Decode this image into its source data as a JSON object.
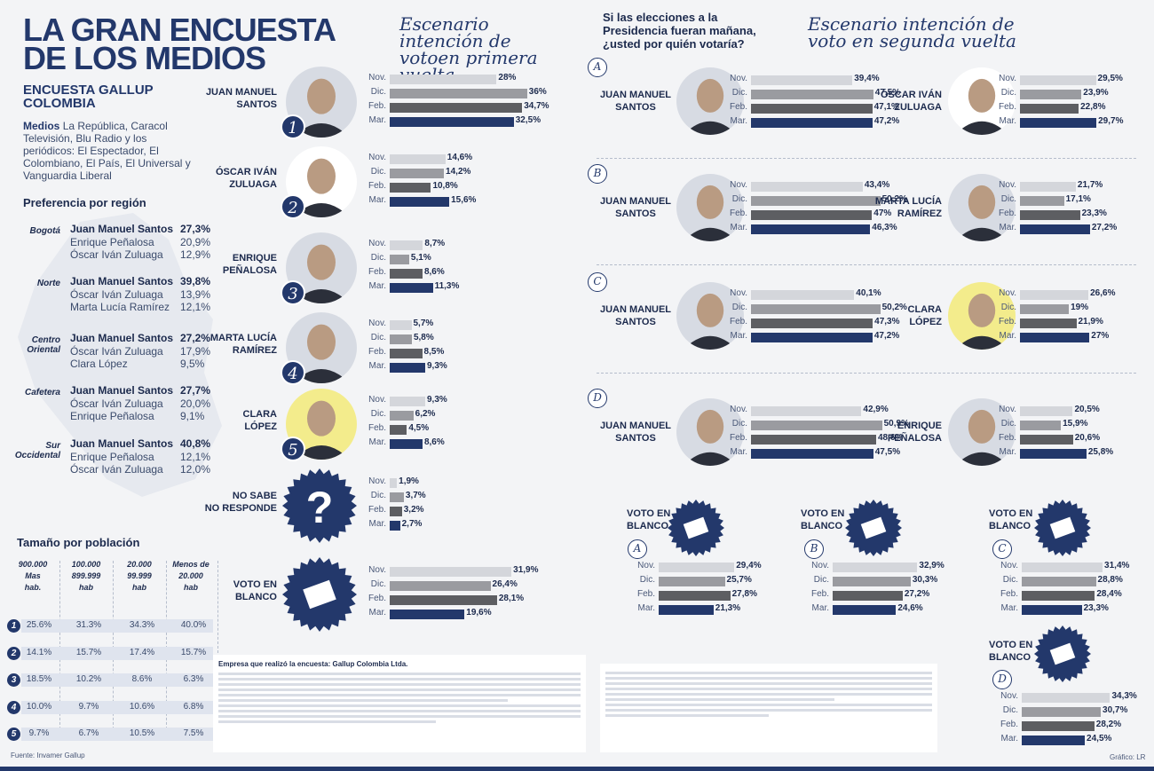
{
  "header": {
    "title_line1": "LA GRAN ENCUESTA",
    "title_line2": "DE LOS MEDIOS",
    "subtitle_line1": "ENCUESTA GALLUP",
    "subtitle_line2": "COLOMBIA",
    "medios_label": "Medios",
    "medios_text": "La República, Caracol Televisión, Blu Radio y los periódicos: El Espectador, El Colombiano, El País, El Universal y Vanguardia Liberal"
  },
  "region": {
    "title": "Preferencia por región",
    "groups": [
      {
        "label": "Bogotá",
        "rows": [
          [
            "Juan Manuel Santos",
            "27,3%"
          ],
          [
            "Enrique Peñalosa",
            "20,9%"
          ],
          [
            "Óscar Iván Zuluaga",
            "12,9%"
          ]
        ]
      },
      {
        "label": "Norte",
        "rows": [
          [
            "Juan Manuel Santos",
            "39,8%"
          ],
          [
            "Óscar Iván Zuluaga",
            "13,9%"
          ],
          [
            "Marta Lucía Ramírez",
            "12,1%"
          ]
        ]
      },
      {
        "label": "Centro Oriental",
        "rows": [
          [
            "Juan Manuel Santos",
            "27,2%"
          ],
          [
            "Óscar Iván Zuluaga",
            "17,9%"
          ],
          [
            "Clara López",
            "9,5%"
          ]
        ]
      },
      {
        "label": "Cafetera",
        "rows": [
          [
            "Juan Manuel Santos",
            "27,7%"
          ],
          [
            "Óscar Iván Zuluaga",
            "20,0%"
          ],
          [
            "Enrique Peñalosa",
            "9,1%"
          ]
        ]
      },
      {
        "label": "Sur Occidental",
        "rows": [
          [
            "Juan Manuel Santos",
            "40,8%"
          ],
          [
            "Enrique Peñalosa",
            "12,1%"
          ],
          [
            "Óscar Iván Zuluaga",
            "12,0%"
          ]
        ]
      }
    ]
  },
  "population": {
    "title": "Tamaño por población",
    "headers": [
      [
        "900.000",
        "Mas",
        "hab."
      ],
      [
        "100.000",
        "899.999",
        "hab"
      ],
      [
        "20.000",
        "99.999",
        "hab"
      ],
      [
        "Menos de",
        "20.000",
        "hab"
      ]
    ],
    "rows": [
      {
        "n": "1",
        "vals": [
          "25.6%",
          "31.3%",
          "34.3%",
          "40.0%"
        ]
      },
      {
        "n": "2",
        "vals": [
          "14.1%",
          "15.7%",
          "17.4%",
          "15.7%"
        ]
      },
      {
        "n": "3",
        "vals": [
          "18.5%",
          "10.2%",
          "8.6%",
          "6.3%"
        ]
      },
      {
        "n": "4",
        "vals": [
          "10.0%",
          "9.7%",
          "10.6%",
          "6.8%"
        ]
      },
      {
        "n": "5",
        "vals": [
          "9.7%",
          "6.7%",
          "10.5%",
          "7.5%"
        ]
      }
    ],
    "source": "Fuente: Invamer Gallup"
  },
  "first_round": {
    "title": "Escenario intención de votoen primera vuelta",
    "candidates": [
      {
        "name": "JUAN MANUEL\nSANTOS",
        "num": "1"
      },
      {
        "name": "ÓSCAR IVÁN\nZULUAGA",
        "num": "2"
      },
      {
        "name": "ENRIQUE\nPEÑALOSA",
        "num": "3"
      },
      {
        "name": "MARTA LUCÍA\nRAMÍREZ",
        "num": "4"
      },
      {
        "name": "CLARA\nLÓPEZ",
        "num": "5"
      },
      {
        "name": "NO SABE\nNO RESPONDE",
        "num": ""
      },
      {
        "name": "VOTO EN\nBLANCO",
        "num": ""
      }
    ]
  },
  "second_round": {
    "question": "Si las elecciones a la Presidencia fueran mañana, ¿usted por quién votaría?",
    "title": "Escenario intención de voto en segunda vuelta",
    "scenarios": [
      {
        "letter": "A",
        "left": "JUAN MANUEL\nSANTOS",
        "right": "ÓSCAR IVÁN\nZULUAGA"
      },
      {
        "letter": "B",
        "left": "JUAN MANUEL\nSANTOS",
        "right": "MARTA LUCÍA\nRAMÍREZ"
      },
      {
        "letter": "C",
        "left": "JUAN MANUEL\nSANTOS",
        "right": "CLARA\nLÓPEZ"
      },
      {
        "letter": "D",
        "left": "JUAN MANUEL\nSANTOS",
        "right": "ENRIQUE\nPEÑALOSA"
      }
    ],
    "blank_label": "VOTO EN\nBLANCO"
  },
  "footer": {
    "company": "Empresa que realizó la encuesta: Gallup Colombia Ltda.",
    "credit": "Gráfico: LR"
  },
  "colors": {
    "navy": "#23386b",
    "bar_light": "#d4d6db",
    "bar_mid": "#9a9ba0",
    "bar_dark": "#5d5e62",
    "bar_last": "#23386b"
  },
  "chart_data": [
    {
      "type": "bar",
      "id": "fr-santos",
      "categories": [
        "Nov.",
        "Dic.",
        "Feb.",
        "Mar."
      ],
      "values": [
        28,
        36,
        34.7,
        32.5
      ],
      "labels": [
        "28%",
        "36%",
        "34,7%",
        "32,5%"
      ]
    },
    {
      "type": "bar",
      "id": "fr-zuluaga",
      "categories": [
        "Nov.",
        "Dic.",
        "Feb.",
        "Mar."
      ],
      "values": [
        14.6,
        14.2,
        10.8,
        15.6
      ],
      "labels": [
        "14,6%",
        "14,2%",
        "10,8%",
        "15,6%"
      ]
    },
    {
      "type": "bar",
      "id": "fr-penalosa",
      "categories": [
        "Nov.",
        "Dic.",
        "Feb.",
        "Mar."
      ],
      "values": [
        8.7,
        5.1,
        8.6,
        11.3
      ],
      "labels": [
        "8,7%",
        "5,1%",
        "8,6%",
        "11,3%"
      ]
    },
    {
      "type": "bar",
      "id": "fr-ramirez",
      "categories": [
        "Nov.",
        "Dic.",
        "Feb.",
        "Mar."
      ],
      "values": [
        5.7,
        5.8,
        8.5,
        9.3
      ],
      "labels": [
        "5,7%",
        "5,8%",
        "8,5%",
        "9,3%"
      ]
    },
    {
      "type": "bar",
      "id": "fr-lopez",
      "categories": [
        "Nov.",
        "Dic.",
        "Feb.",
        "Mar."
      ],
      "values": [
        9.3,
        6.2,
        4.5,
        8.6
      ],
      "labels": [
        "9,3%",
        "6,2%",
        "4,5%",
        "8,6%"
      ]
    },
    {
      "type": "bar",
      "id": "fr-ns",
      "categories": [
        "Nov.",
        "Dic.",
        "Feb.",
        "Mar."
      ],
      "values": [
        1.9,
        3.7,
        3.2,
        2.7
      ],
      "labels": [
        "1,9%",
        "3,7%",
        "3,2%",
        "2,7%"
      ]
    },
    {
      "type": "bar",
      "id": "fr-blanco",
      "categories": [
        "Nov.",
        "Dic.",
        "Feb.",
        "Mar."
      ],
      "values": [
        31.9,
        26.4,
        28.1,
        19.6
      ],
      "labels": [
        "31,9%",
        "26,4%",
        "28,1%",
        "19,6%"
      ]
    },
    {
      "type": "bar",
      "id": "A-left",
      "categories": [
        "Nov.",
        "Dic.",
        "Feb.",
        "Mar."
      ],
      "values": [
        39.4,
        47.5,
        47.1,
        47.2
      ],
      "labels": [
        "39,4%",
        "47,5%",
        "47,1%",
        "47,2%"
      ]
    },
    {
      "type": "bar",
      "id": "A-right",
      "categories": [
        "Nov.",
        "Dic.",
        "Feb.",
        "Mar."
      ],
      "values": [
        29.5,
        23.9,
        22.8,
        29.7
      ],
      "labels": [
        "29,5%",
        "23,9%",
        "22,8%",
        "29,7%"
      ]
    },
    {
      "type": "bar",
      "id": "B-left",
      "categories": [
        "Nov.",
        "Dic.",
        "Feb.",
        "Mar."
      ],
      "values": [
        43.4,
        50.2,
        47,
        46.3
      ],
      "labels": [
        "43,4%",
        "50,2%",
        "47%",
        "46,3%"
      ]
    },
    {
      "type": "bar",
      "id": "B-right",
      "categories": [
        "Nov.",
        "Dic.",
        "Feb.",
        "Mar."
      ],
      "values": [
        21.7,
        17.1,
        23.3,
        27.2
      ],
      "labels": [
        "21,7%",
        "17,1%",
        "23,3%",
        "27,2%"
      ]
    },
    {
      "type": "bar",
      "id": "C-left",
      "categories": [
        "Nov.",
        "Dic.",
        "Feb.",
        "Mar."
      ],
      "values": [
        40.1,
        50.2,
        47.3,
        47.2
      ],
      "labels": [
        "40,1%",
        "50,2%",
        "47,3%",
        "47,2%"
      ]
    },
    {
      "type": "bar",
      "id": "C-right",
      "categories": [
        "Nov.",
        "Dic.",
        "Feb.",
        "Mar."
      ],
      "values": [
        26.6,
        19,
        21.9,
        27
      ],
      "labels": [
        "26,6%",
        "19%",
        "21,9%",
        "27%"
      ]
    },
    {
      "type": "bar",
      "id": "D-left",
      "categories": [
        "Nov.",
        "Dic.",
        "Feb.",
        "Mar."
      ],
      "values": [
        42.9,
        50.9,
        48.6,
        47.5
      ],
      "labels": [
        "42,9%",
        "50,9%",
        "48,6%",
        "47,5%"
      ]
    },
    {
      "type": "bar",
      "id": "D-right",
      "categories": [
        "Nov.",
        "Dic.",
        "Feb.",
        "Mar."
      ],
      "values": [
        20.5,
        15.9,
        20.6,
        25.8
      ],
      "labels": [
        "20,5%",
        "15,9%",
        "20,6%",
        "25,8%"
      ]
    },
    {
      "type": "bar",
      "id": "A-blank",
      "categories": [
        "Nov.",
        "Dic.",
        "Feb.",
        "Mar."
      ],
      "values": [
        29.4,
        25.7,
        27.8,
        21.3
      ],
      "labels": [
        "29,4%",
        "25,7%",
        "27,8%",
        "21,3%"
      ]
    },
    {
      "type": "bar",
      "id": "B-blank",
      "categories": [
        "Nov.",
        "Dic.",
        "Feb.",
        "Mar."
      ],
      "values": [
        32.9,
        30.3,
        27.2,
        24.6
      ],
      "labels": [
        "32,9%",
        "30,3%",
        "27,2%",
        "24,6%"
      ]
    },
    {
      "type": "bar",
      "id": "C-blank",
      "categories": [
        "Nov.",
        "Dic.",
        "Feb.",
        "Mar."
      ],
      "values": [
        31.4,
        28.8,
        28.4,
        23.3
      ],
      "labels": [
        "31,4%",
        "28,8%",
        "28,4%",
        "23,3%"
      ]
    },
    {
      "type": "bar",
      "id": "D-blank",
      "categories": [
        "Nov.",
        "Dic.",
        "Feb.",
        "Mar."
      ],
      "values": [
        34.3,
        30.7,
        28.2,
        24.5
      ],
      "labels": [
        "34,3%",
        "30,7%",
        "28,2%",
        "24,5%"
      ]
    }
  ]
}
